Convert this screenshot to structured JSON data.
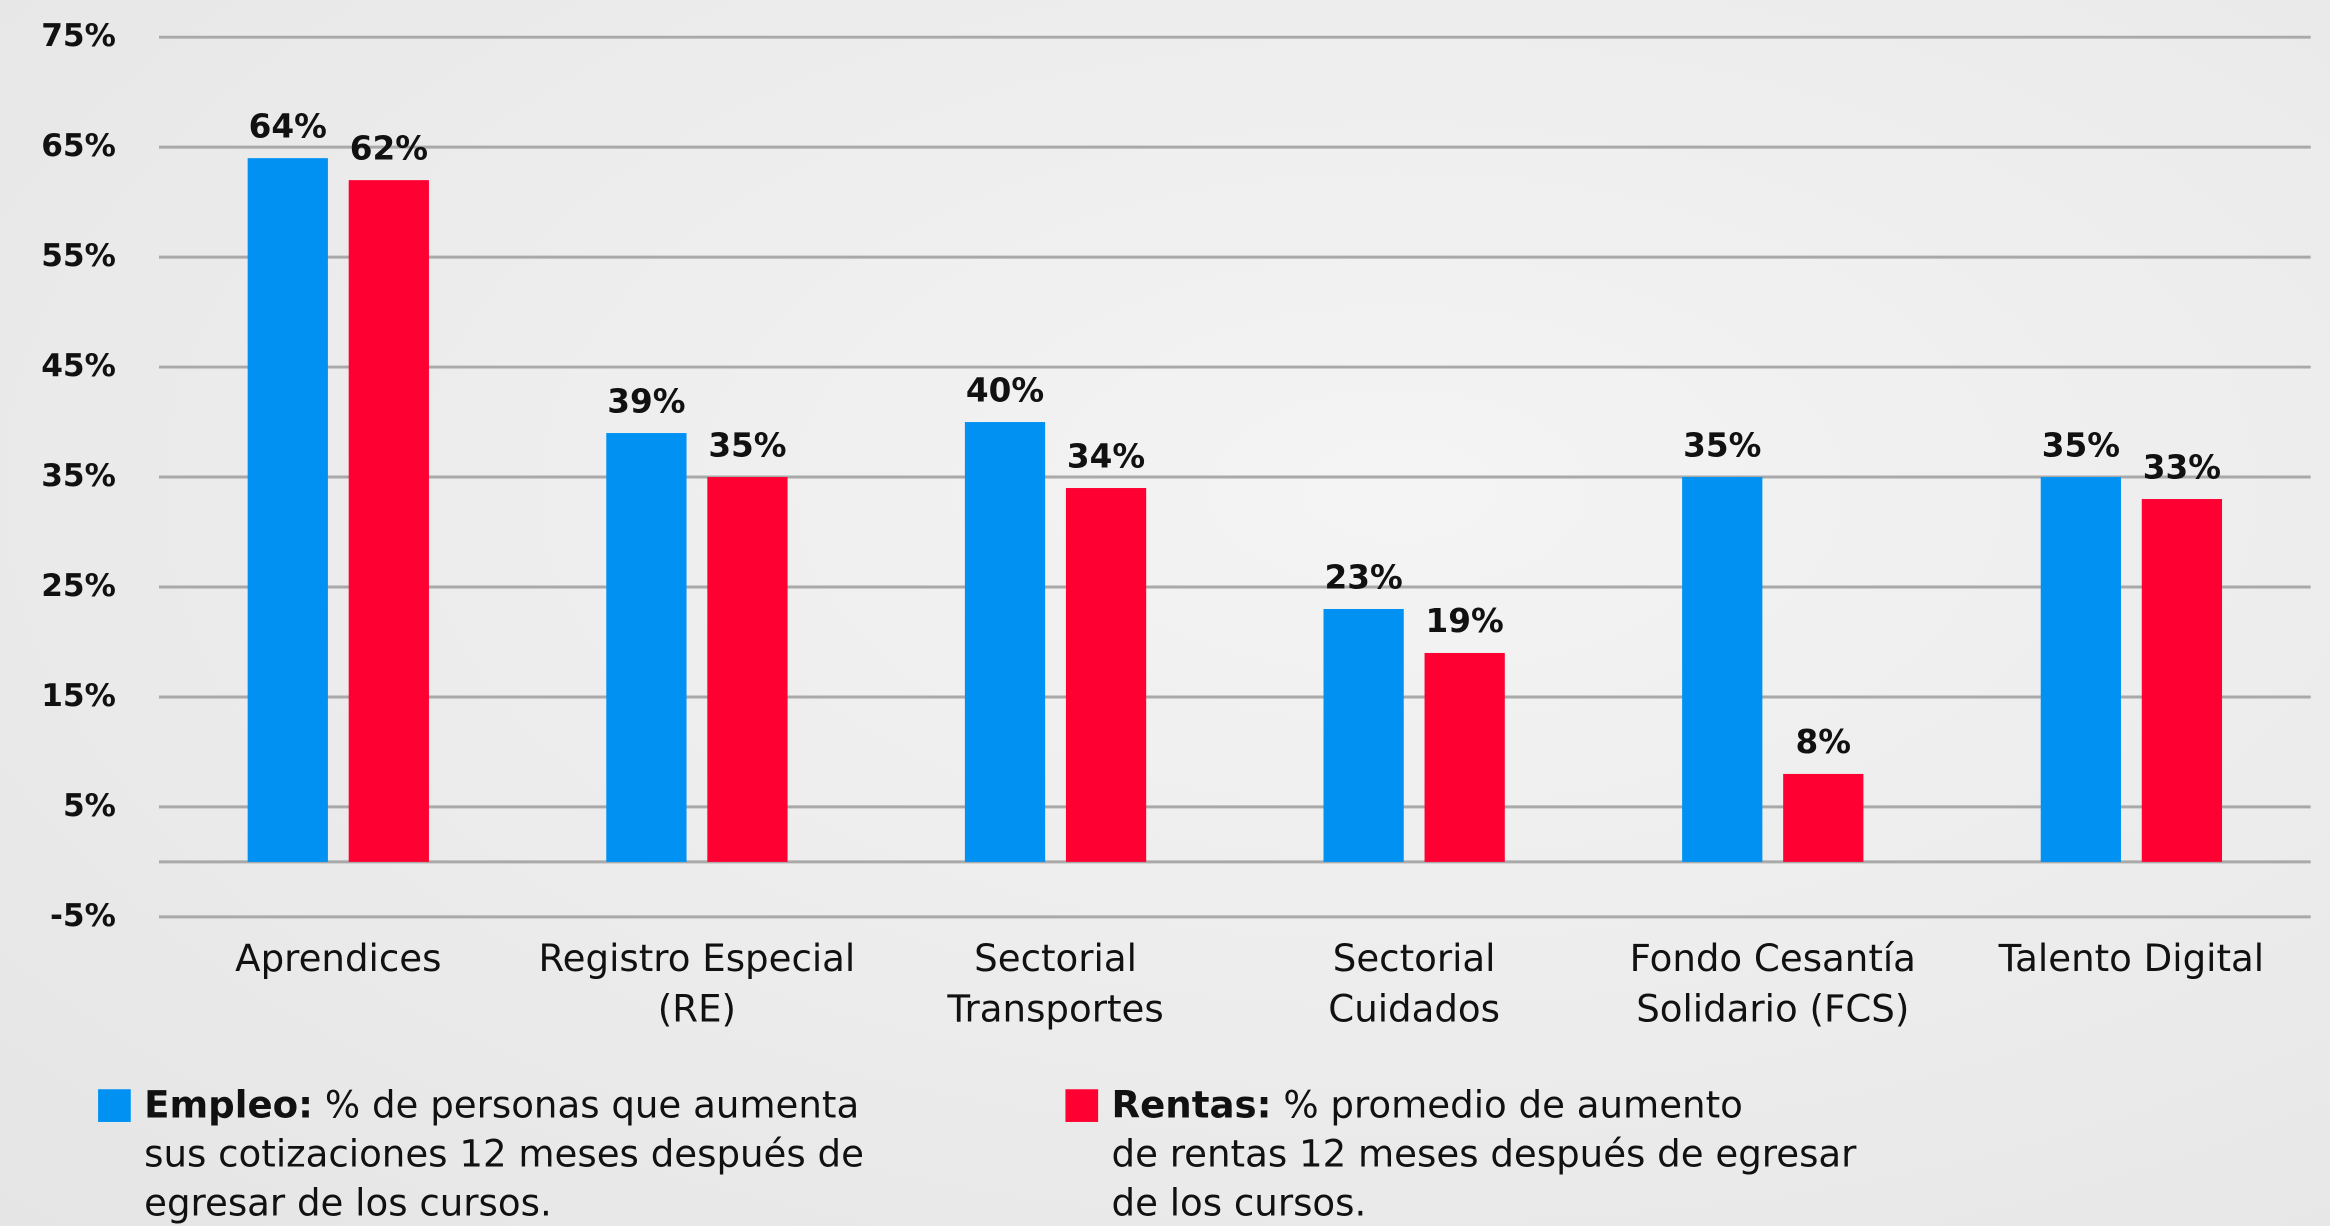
{
  "chart_data": {
    "type": "bar",
    "categories": [
      "Aprendices",
      "Registro Especial (RE)",
      "Sectorial Transportes",
      "Sectorial Cuidados",
      "Fondo Cesantía Solidario (FCS)",
      "Talento Digital"
    ],
    "series": [
      {
        "name": "Empleo:",
        "color": "#0091f2",
        "description": [
          "% de personas que aumenta",
          "sus cotizaciones 12 meses después de",
          "egresar de los cursos."
        ],
        "values": [
          64,
          39,
          40,
          23,
          35,
          35
        ],
        "value_labels": [
          "64%",
          "39%",
          "40%",
          "23%",
          "35%",
          "35%"
        ]
      },
      {
        "name": "Rentas:",
        "color": "#ff0033",
        "description": [
          "% promedio de aumento",
          "de rentas 12 meses después de egresar",
          "de los cursos."
        ],
        "values": [
          62,
          35,
          34,
          19,
          8,
          33
        ],
        "value_labels": [
          "62%",
          "35%",
          "34%",
          "19%",
          "8%",
          "33%"
        ]
      }
    ],
    "ylim": [
      -5,
      75
    ],
    "yticks": [
      {
        "value": -5,
        "label": "-5%"
      },
      {
        "value": 5,
        "label": "5%"
      },
      {
        "value": 15,
        "label": "15%"
      },
      {
        "value": 25,
        "label": "25%"
      },
      {
        "value": 35,
        "label": "35%"
      },
      {
        "value": 45,
        "label": "45%"
      },
      {
        "value": 55,
        "label": "55%"
      },
      {
        "value": 65,
        "label": "65%"
      },
      {
        "value": 75,
        "label": "75%"
      }
    ],
    "grid": true
  }
}
